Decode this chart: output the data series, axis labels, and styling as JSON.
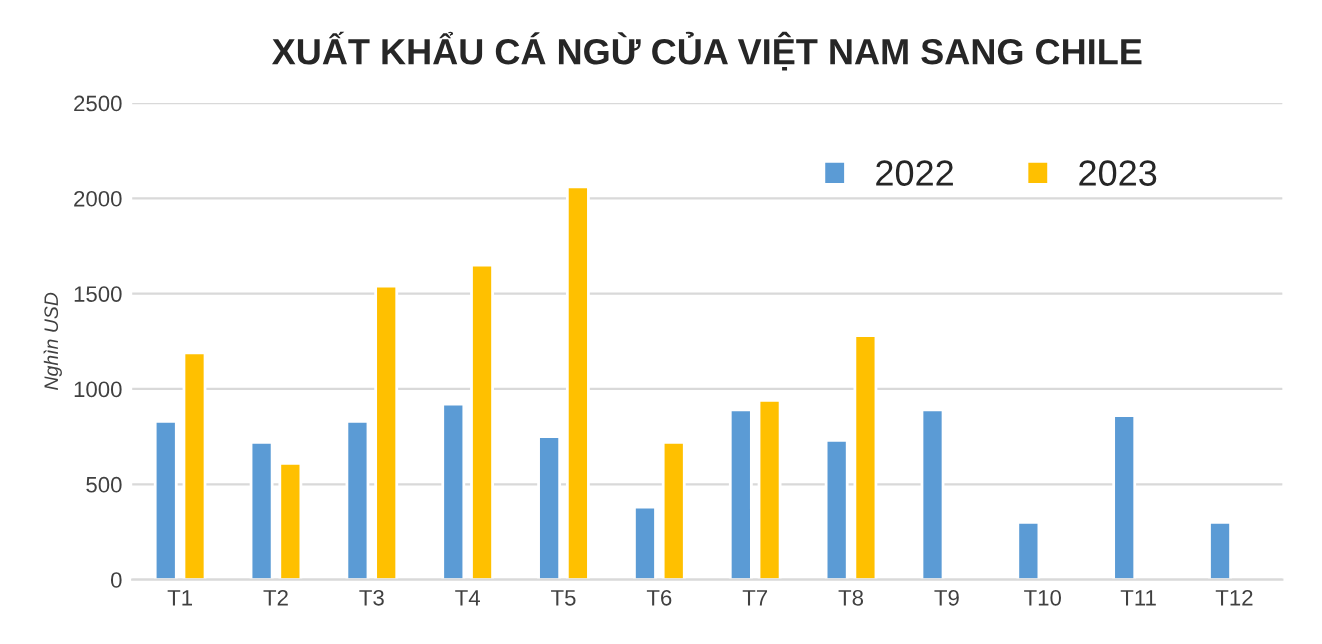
{
  "chart_data": {
    "type": "bar",
    "title": "XUẤT KHẨU CÁ NGỪ CỦA VIỆT NAM SANG CHILE",
    "ylabel": "Nghìn USD",
    "categories": [
      "T1",
      "T2",
      "T3",
      "T4",
      "T5",
      "T6",
      "T7",
      "T8",
      "T9",
      "T10",
      "T11",
      "T12"
    ],
    "series": [
      {
        "name": "2022",
        "color": "#5b9bd5",
        "values": [
          830,
          720,
          830,
          920,
          750,
          380,
          890,
          730,
          890,
          300,
          860,
          300
        ]
      },
      {
        "name": "2023",
        "color": "#ffc000",
        "values": [
          1190,
          610,
          1540,
          1650,
          2060,
          720,
          940,
          1280,
          null,
          null,
          null,
          null
        ]
      }
    ],
    "ylim": [
      0,
      2500
    ],
    "yticks": [
      0,
      500,
      1000,
      1500,
      2000,
      2500
    ],
    "grid": "y",
    "legend": "top right"
  }
}
